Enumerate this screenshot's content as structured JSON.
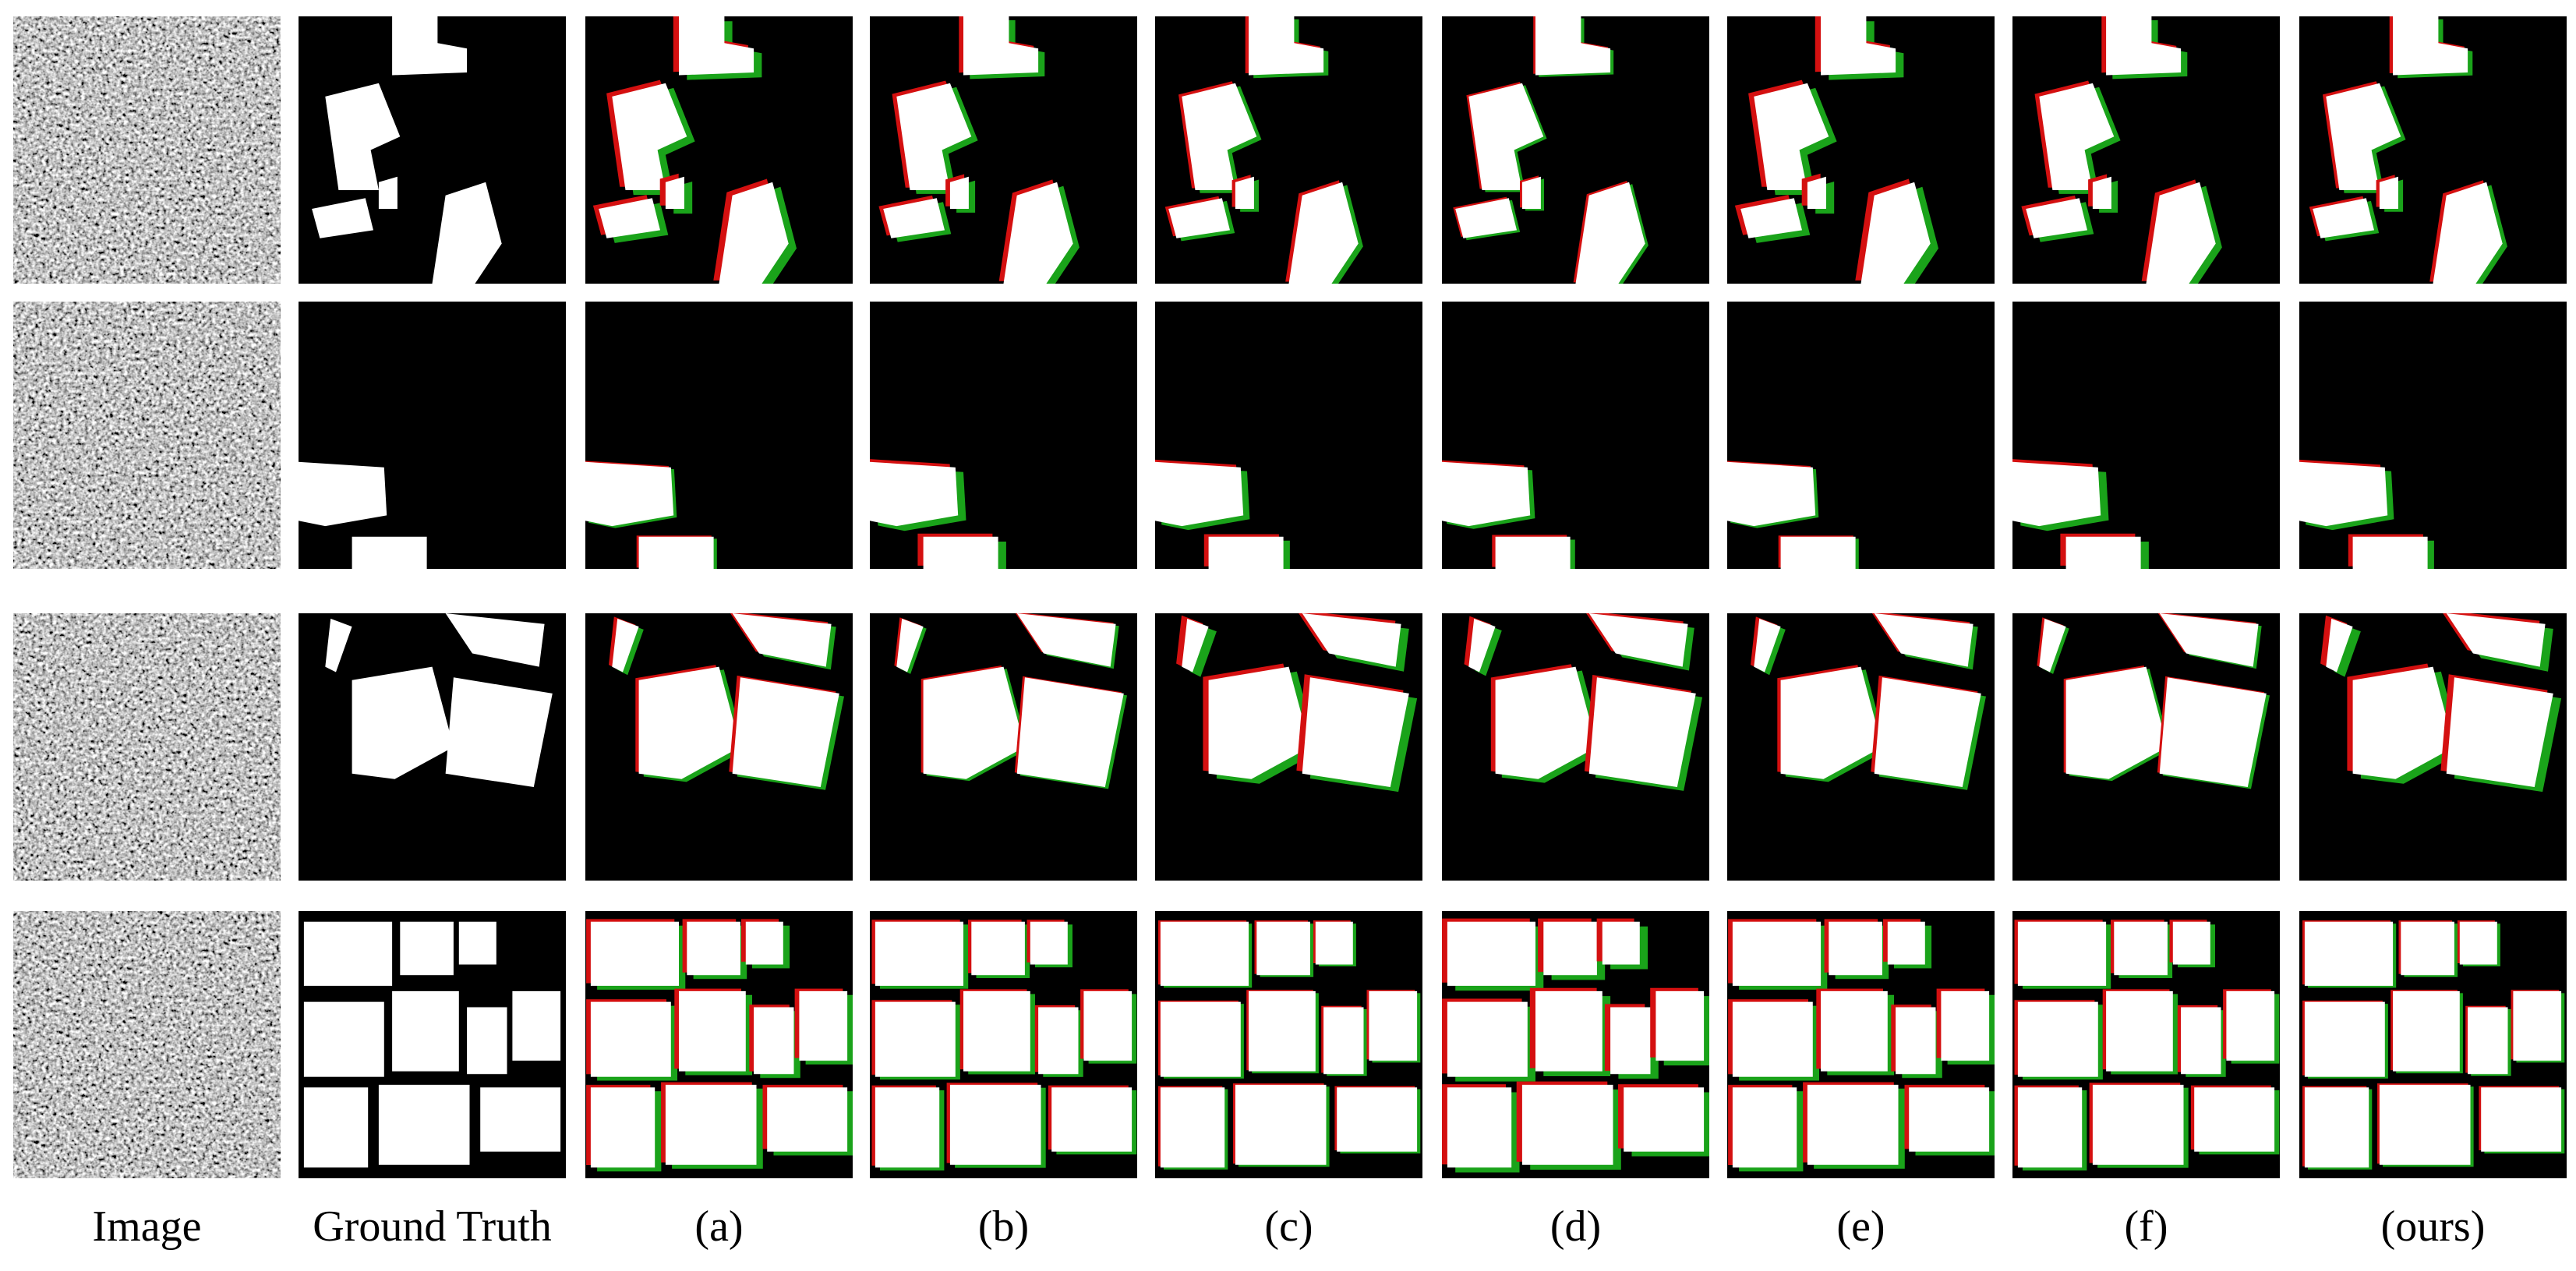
{
  "columns": [
    "Image",
    "Ground Truth",
    "(a)",
    "(b)",
    "(c)",
    "(d)",
    "(e)",
    "(f)",
    "(ours)"
  ]
}
